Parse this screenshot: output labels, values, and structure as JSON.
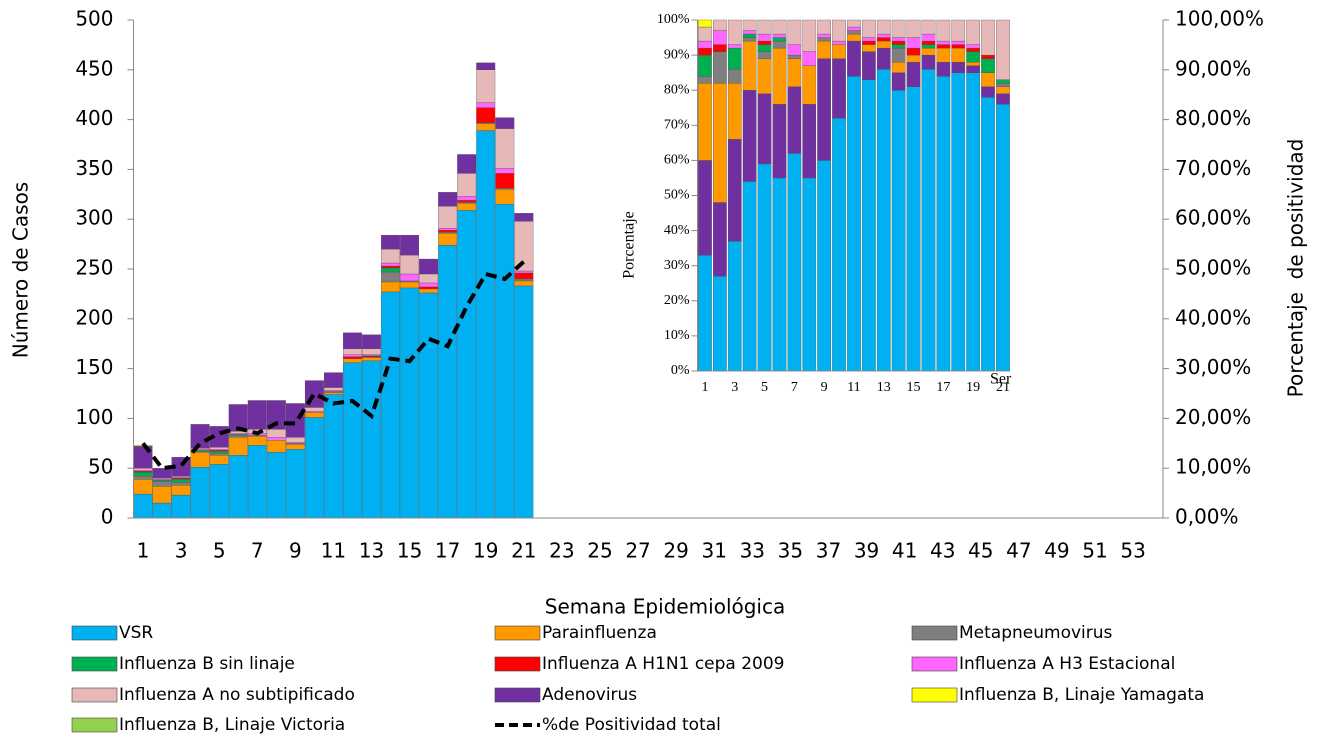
{
  "chart_data": [
    {
      "type": "bar",
      "stacked": true,
      "x_label": "Semana Epidemiológica",
      "y_label": "Número de Casos",
      "y2_label": "Porcentaje  de positividad",
      "categories": [
        "1",
        null,
        "3",
        null,
        "5",
        null,
        "7",
        null,
        "9",
        null,
        "11",
        null,
        "13",
        null,
        "15",
        null,
        "17",
        null,
        "19",
        null,
        "21",
        null,
        "23",
        null,
        "25",
        null,
        "27",
        null,
        "29",
        null,
        "31",
        null,
        "33",
        null,
        "35",
        null,
        "37",
        null,
        "39",
        null,
        "41",
        null,
        "43",
        null,
        "45",
        null,
        "47",
        null,
        "49",
        null,
        "51",
        null,
        "53"
      ],
      "ylim": [
        0,
        500
      ],
      "yticks": [
        0,
        50,
        100,
        150,
        200,
        250,
        300,
        350,
        400,
        450,
        500
      ],
      "y2lim": [
        0,
        100
      ],
      "y2ticks": [
        {
          "value": 0,
          "label": "0,00%"
        },
        {
          "value": 10,
          "label": "10,00%"
        },
        {
          "value": 20,
          "label": "20,00%"
        },
        {
          "value": 30,
          "label": "30,00%"
        },
        {
          "value": 40,
          "label": "40,00%"
        },
        {
          "value": 50,
          "label": "50,00%"
        },
        {
          "value": 60,
          "label": "60,00%"
        },
        {
          "value": 70,
          "label": "70,00%"
        },
        {
          "value": 80,
          "label": "80,00%"
        },
        {
          "value": 90,
          "label": "90,00%"
        },
        {
          "value": 100,
          "label": "100,00%"
        }
      ],
      "legend": "bottom",
      "series": [
        {
          "name": "VSR",
          "color": "#00b0f0",
          "values": [
            24,
            15,
            23,
            51,
            54,
            63,
            73,
            66,
            69,
            101,
            124,
            156,
            158,
            227,
            231,
            226,
            274,
            309,
            389,
            315,
            233,
            null,
            null,
            null,
            null,
            null,
            null,
            null,
            null,
            null,
            null,
            null,
            null,
            null,
            null,
            null,
            null,
            null,
            null,
            null,
            null,
            null,
            null,
            null,
            null,
            null,
            null,
            null,
            null,
            null,
            null,
            null,
            null
          ]
        },
        {
          "name": "Parainfluenza",
          "color": "#ff9900",
          "values": [
            15,
            17,
            10,
            15,
            9,
            18,
            9,
            12,
            5,
            5,
            2,
            4,
            3,
            10,
            6,
            4,
            12,
            7,
            7,
            15,
            5,
            null,
            null,
            null,
            null,
            null,
            null,
            null,
            null,
            null,
            null,
            null,
            null,
            null,
            null,
            null,
            null,
            null,
            null,
            null,
            null,
            null,
            null,
            null,
            null,
            null,
            null,
            null,
            null,
            null,
            null,
            null,
            null
          ]
        },
        {
          "name": "Metapneumovirus",
          "color": "#7f7f7f",
          "values": [
            3,
            5,
            3,
            1,
            2,
            2,
            1,
            0,
            1,
            0,
            1,
            0,
            1,
            10,
            1,
            0,
            1,
            1,
            1,
            1,
            2,
            null,
            null,
            null,
            null,
            null,
            null,
            null,
            null,
            null,
            null,
            null,
            null,
            null,
            null,
            null,
            null,
            null,
            null,
            null,
            null,
            null,
            null,
            null,
            null,
            null,
            null,
            null,
            null,
            null,
            null,
            null,
            null
          ]
        },
        {
          "name": "Influenza B sin linaje",
          "color": "#00b050",
          "values": [
            4,
            1,
            3,
            1,
            2,
            1,
            0,
            0,
            0,
            0,
            0,
            0,
            0,
            4,
            0,
            0,
            0,
            0,
            0,
            0,
            0,
            null,
            null,
            null,
            null,
            null,
            null,
            null,
            null,
            null,
            null,
            null,
            null,
            null,
            null,
            null,
            null,
            null,
            null,
            null,
            null,
            null,
            null,
            null,
            null,
            null,
            null,
            null,
            null,
            null,
            null,
            null,
            null
          ]
        },
        {
          "name": "Influenza A H1N1 cepa 2009",
          "color": "#ff0000",
          "values": [
            1,
            0,
            1,
            0,
            1,
            0,
            0,
            0,
            0,
            0,
            0,
            2,
            1,
            2,
            0,
            2,
            2,
            2,
            15,
            15,
            6,
            null,
            null,
            null,
            null,
            null,
            null,
            null,
            null,
            null,
            null,
            null,
            null,
            null,
            null,
            null,
            null,
            null,
            null,
            null,
            null,
            null,
            null,
            null,
            null,
            null,
            null,
            null,
            null,
            null,
            null,
            null,
            null
          ]
        },
        {
          "name": "Influenza A H3 Estacional",
          "color": "#ff66ff",
          "values": [
            1,
            1,
            1,
            1,
            1,
            1,
            2,
            3,
            1,
            1,
            1,
            2,
            1,
            3,
            7,
            4,
            2,
            4,
            5,
            5,
            2,
            null,
            null,
            null,
            null,
            null,
            null,
            null,
            null,
            null,
            null,
            null,
            null,
            null,
            null,
            null,
            null,
            null,
            null,
            null,
            null,
            null,
            null,
            null,
            null,
            null,
            null,
            null,
            null,
            null,
            null,
            null,
            null
          ]
        },
        {
          "name": "Influenza A no subtipificado",
          "color": "#e6b9b8",
          "values": [
            2,
            1,
            1,
            1,
            2,
            2,
            4,
            8,
            5,
            4,
            3,
            6,
            6,
            14,
            19,
            9,
            22,
            23,
            33,
            40,
            50,
            null,
            null,
            null,
            null,
            null,
            null,
            null,
            null,
            null,
            null,
            null,
            null,
            null,
            null,
            null,
            null,
            null,
            null,
            null,
            null,
            null,
            null,
            null,
            null,
            null,
            null,
            null,
            null,
            null,
            null,
            null,
            null
          ]
        },
        {
          "name": "Adenovirus",
          "color": "#7030a0",
          "values": [
            22,
            10,
            19,
            24,
            21,
            27,
            29,
            29,
            34,
            27,
            15,
            16,
            14,
            14,
            20,
            15,
            14,
            19,
            7,
            11,
            8,
            null,
            null,
            null,
            null,
            null,
            null,
            null,
            null,
            null,
            null,
            null,
            null,
            null,
            null,
            null,
            null,
            null,
            null,
            null,
            null,
            null,
            null,
            null,
            null,
            null,
            null,
            null,
            null,
            null,
            null,
            null,
            null
          ]
        },
        {
          "name": "Influenza B, Linaje Yamagata",
          "color": "#ffff00",
          "values": [
            1,
            0,
            0,
            0,
            0,
            0,
            0,
            0,
            0,
            0,
            0,
            0,
            0,
            0,
            0,
            0,
            0,
            0,
            0,
            0,
            0,
            null,
            null,
            null,
            null,
            null,
            null,
            null,
            null,
            null,
            null,
            null,
            null,
            null,
            null,
            null,
            null,
            null,
            null,
            null,
            null,
            null,
            null,
            null,
            null,
            null,
            null,
            null,
            null,
            null,
            null,
            null,
            null
          ]
        },
        {
          "name": "Influenza B, Linaje Victoria",
          "color": "#92d050",
          "values": [
            0,
            0,
            0,
            0,
            0,
            0,
            0,
            0,
            0,
            0,
            0,
            0,
            0,
            0,
            0,
            0,
            0,
            0,
            0,
            0,
            0,
            null,
            null,
            null,
            null,
            null,
            null,
            null,
            null,
            null,
            null,
            null,
            null,
            null,
            null,
            null,
            null,
            null,
            null,
            null,
            null,
            null,
            null,
            null,
            null,
            null,
            null,
            null,
            null,
            null,
            null,
            null,
            null
          ]
        },
        {
          "name": "%de Positividad total",
          "type": "line",
          "axis": "y2",
          "dashed": true,
          "color": "#000000",
          "values": [
            15,
            10,
            10.5,
            15,
            17,
            18,
            17,
            19,
            19,
            25,
            23,
            23.5,
            20.5,
            32,
            31.5,
            36,
            34.5,
            42.5,
            49,
            48,
            51.5,
            null,
            null,
            null,
            null,
            null,
            null,
            null,
            null,
            null,
            null,
            null,
            null,
            null,
            null,
            null,
            null,
            null,
            null,
            null,
            null,
            null,
            null,
            null,
            null,
            null,
            null,
            null,
            null,
            null,
            null,
            null,
            null
          ]
        }
      ]
    },
    {
      "type": "bar",
      "stacked": true,
      "y_label": "Porcentaje",
      "annotation": "Ser",
      "categories": [
        "1",
        null,
        "3",
        null,
        "5",
        null,
        "7",
        null,
        "9",
        null,
        "11",
        null,
        "13",
        null,
        "15",
        null,
        "17",
        null,
        "19",
        null,
        "21"
      ],
      "ylim": [
        0,
        100
      ],
      "yticks": [
        {
          "value": 0,
          "label": "0%"
        },
        {
          "value": 10,
          "label": "10%"
        },
        {
          "value": 20,
          "label": "20%"
        },
        {
          "value": 30,
          "label": "30%"
        },
        {
          "value": 40,
          "label": "40%"
        },
        {
          "value": 50,
          "label": "50%"
        },
        {
          "value": 60,
          "label": "60%"
        },
        {
          "value": 70,
          "label": "70%"
        },
        {
          "value": 80,
          "label": "80%"
        },
        {
          "value": 90,
          "label": "90%"
        },
        {
          "value": 100,
          "label": "100%"
        }
      ],
      "series": [
        {
          "color": "#00b0f0",
          "values": [
            33,
            27,
            37,
            54,
            59,
            55,
            62,
            55,
            60,
            72,
            84,
            83,
            86,
            80,
            81,
            86,
            84,
            85,
            85,
            78,
            76
          ]
        },
        {
          "color": "#7030a0",
          "values": [
            27,
            21,
            29,
            26,
            20,
            21,
            19,
            21,
            29,
            17,
            10,
            8,
            6,
            5,
            7,
            4,
            4,
            3,
            2,
            3,
            3
          ]
        },
        {
          "color": "#ff9900",
          "values": [
            22,
            34,
            16,
            14,
            10,
            16,
            8,
            11,
            5,
            4,
            2,
            2,
            2,
            3,
            2,
            2,
            4,
            4,
            1,
            4,
            2
          ]
        },
        {
          "color": "#7f7f7f",
          "values": [
            2,
            9,
            4,
            1,
            2,
            2,
            1,
            0,
            1,
            0,
            1,
            0,
            0,
            4,
            0,
            0,
            0,
            0,
            0,
            0,
            1
          ]
        },
        {
          "color": "#00b050",
          "values": [
            6,
            0,
            6,
            1,
            2,
            1,
            0,
            0,
            0,
            0,
            0,
            0,
            0,
            1,
            0,
            1,
            0,
            0,
            3,
            4,
            1
          ]
        },
        {
          "color": "#ff0000",
          "values": [
            2,
            2,
            0,
            0,
            1,
            0,
            0,
            0,
            0,
            0,
            0,
            1,
            1,
            1,
            2,
            1,
            1,
            1,
            1,
            1,
            0
          ]
        },
        {
          "color": "#ff66ff",
          "values": [
            2,
            4,
            1,
            1,
            2,
            1,
            3,
            4,
            1,
            1,
            1,
            1,
            1,
            1,
            3,
            2,
            1,
            1,
            1,
            0,
            0
          ]
        },
        {
          "color": "#e6b9b8",
          "values": [
            4,
            3,
            7,
            3,
            4,
            4,
            7,
            9,
            4,
            6,
            2,
            5,
            4,
            5,
            5,
            4,
            6,
            6,
            7,
            10,
            17
          ]
        },
        {
          "color": "#ffff00",
          "values": [
            2,
            0,
            0,
            0,
            0,
            0,
            0,
            0,
            0,
            0,
            0,
            0,
            0,
            0,
            0,
            0,
            0,
            0,
            0,
            0,
            0
          ]
        }
      ]
    }
  ]
}
